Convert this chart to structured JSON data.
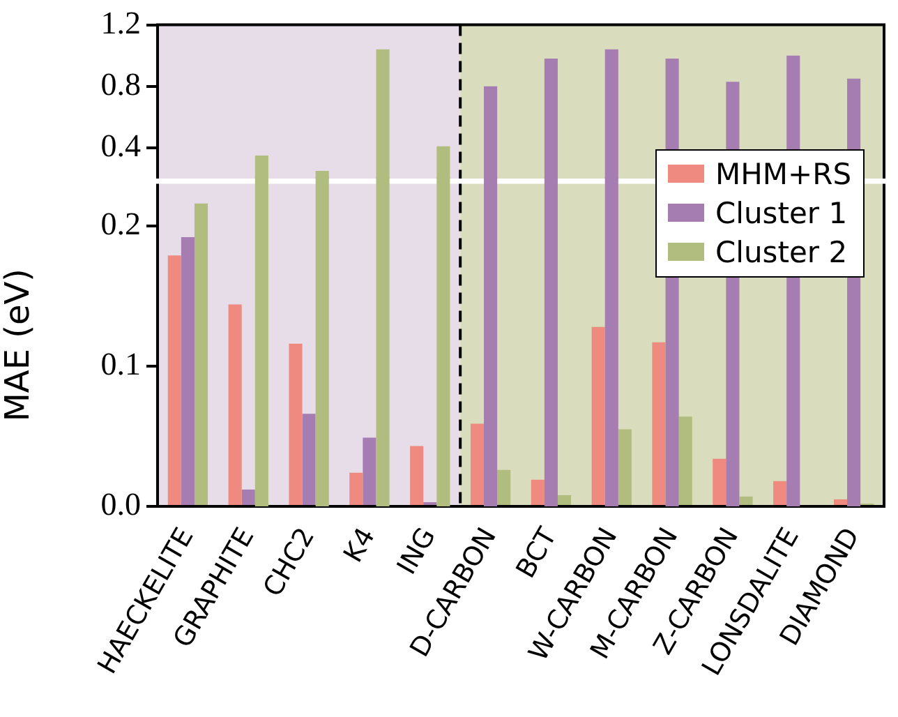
{
  "chart_data": [
    {
      "type": "bar",
      "categories": [
        "HAECKELITE",
        "GRAPHITE",
        "CHC2",
        "K4",
        "ING",
        "D-CARBON",
        "BCT",
        "W-CARBON",
        "M-CARBON",
        "Z-CARBON",
        "LONSDALITE",
        "DIAMOND"
      ],
      "series": [
        {
          "color": "#ee8a7f",
          "values": [
            null,
            null,
            null,
            null,
            null,
            null,
            null,
            null,
            null,
            null,
            null,
            null
          ]
        },
        {
          "color": "#a57db0",
          "values": [
            null,
            null,
            null,
            null,
            null,
            0.8,
            0.98,
            1.04,
            0.98,
            0.83,
            1.0,
            0.85
          ]
        },
        {
          "color": "#b0bd7f",
          "values": [
            null,
            0.35,
            0.25,
            1.04,
            0.41,
            null,
            null,
            null,
            null,
            null,
            null,
            null
          ]
        }
      ],
      "ylim": [
        0.2,
        1.2
      ],
      "yticks": [
        0.4,
        0.8,
        1.2
      ],
      "tick_labels": "y",
      "bands": [
        {
          "axis": "x",
          "from": "HAECKELITE",
          "to": "ING",
          "color": "#e7dde9"
        },
        {
          "axis": "x",
          "from": "D-CARBON",
          "to": "DIAMOND",
          "color": "#d9ddbd"
        }
      ]
    },
    {
      "type": "bar",
      "categories": [
        "HAECKELITE",
        "GRAPHITE",
        "CHC2",
        "K4",
        "ING",
        "D-CARBON",
        "BCT",
        "W-CARBON",
        "M-CARBON",
        "Z-CARBON",
        "LONSDALITE",
        "DIAMOND"
      ],
      "ylabel": "MAE (eV)",
      "series": [
        {
          "name": "MHM+RS",
          "color": "#ee8a7f",
          "values": [
            0.179,
            0.144,
            0.116,
            0.024,
            0.043,
            0.059,
            0.019,
            0.128,
            0.117,
            0.034,
            0.018,
            0.005
          ]
        },
        {
          "name": "Cluster 1",
          "color": "#a57db0",
          "values": [
            0.192,
            0.012,
            0.066,
            0.049,
            0.003,
            null,
            null,
            null,
            null,
            null,
            null,
            null
          ]
        },
        {
          "name": "Cluster 2",
          "color": "#b0bd7f",
          "values": [
            0.216,
            null,
            null,
            null,
            null,
            0.026,
            0.008,
            0.055,
            0.064,
            0.007,
            null,
            0.002
          ]
        }
      ],
      "ylim": [
        0,
        0.23
      ],
      "yticks": [
        {
          "value": 0,
          "label": "0.0"
        },
        0.1,
        0.2
      ],
      "legend": "top right",
      "bands": [
        {
          "axis": "x",
          "from": "HAECKELITE",
          "to": "ING",
          "color": "#e7dde9"
        },
        {
          "axis": "x",
          "from": "D-CARBON",
          "to": "DIAMOND",
          "color": "#d9ddbd"
        }
      ]
    }
  ]
}
